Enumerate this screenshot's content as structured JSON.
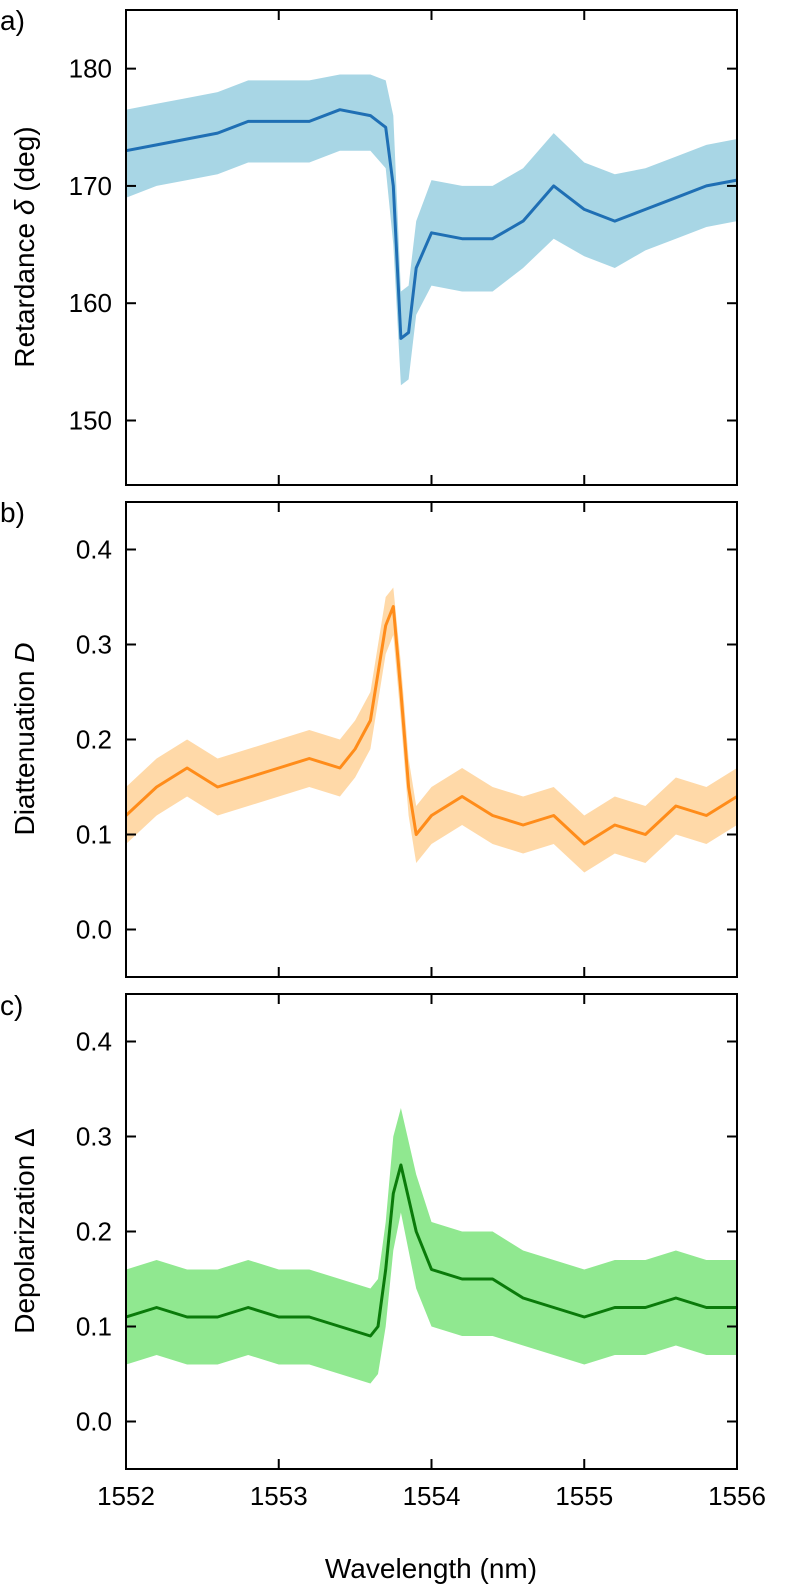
{
  "colors": {
    "a_line": "#1f6fb4",
    "a_band": "#a8d6e5",
    "b_line": "#ff8c1a",
    "b_band": "#ffd9a8",
    "c_line": "#0a7a0a",
    "c_band": "#90e890"
  },
  "chart_data": [
    {
      "type": "line",
      "panel_label": "a)",
      "ylabel_prefix": "Retardance ",
      "ylabel_symbol": "δ",
      "ylabel_suffix": " (deg)",
      "xlim": [
        1552,
        1556
      ],
      "ylim": [
        144.5,
        185
      ],
      "yticks": [
        "150",
        "160",
        "170",
        "180"
      ],
      "ytick_values": [
        150,
        160,
        170,
        180
      ],
      "x": [
        1552.0,
        1552.2,
        1552.4,
        1552.6,
        1552.8,
        1553.0,
        1553.2,
        1553.4,
        1553.6,
        1553.7,
        1553.75,
        1553.8,
        1553.85,
        1553.9,
        1554.0,
        1554.2,
        1554.4,
        1554.6,
        1554.8,
        1555.0,
        1555.2,
        1555.4,
        1555.6,
        1555.8,
        1556.0
      ],
      "series": [
        {
          "mean": [
            173.0,
            173.5,
            174.0,
            174.5,
            175.5,
            175.5,
            175.5,
            176.5,
            176.0,
            175.0,
            170.0,
            157.0,
            157.5,
            163.0,
            166.0,
            165.5,
            165.5,
            167.0,
            170.0,
            168.0,
            167.0,
            168.0,
            169.0,
            170.0,
            170.5
          ],
          "lower": [
            169.0,
            170.0,
            170.5,
            171.0,
            172.0,
            172.0,
            172.0,
            173.0,
            173.0,
            171.5,
            165.0,
            153.0,
            153.5,
            159.0,
            161.5,
            161.0,
            161.0,
            163.0,
            165.5,
            164.0,
            163.0,
            164.5,
            165.5,
            166.5,
            167.0
          ],
          "upper": [
            176.5,
            177.0,
            177.5,
            178.0,
            179.0,
            179.0,
            179.0,
            179.5,
            179.5,
            179.0,
            176.0,
            161.0,
            161.5,
            167.0,
            170.5,
            170.0,
            170.0,
            171.5,
            174.5,
            172.0,
            171.0,
            171.5,
            172.5,
            173.5,
            174.0
          ]
        }
      ]
    },
    {
      "type": "line",
      "panel_label": "b)",
      "ylabel_prefix": "Diattenuation ",
      "ylabel_symbol": "D",
      "ylabel_suffix": "",
      "xlim": [
        1552,
        1556
      ],
      "ylim": [
        -0.05,
        0.45
      ],
      "yticks": [
        "0.0",
        "0.1",
        "0.2",
        "0.3",
        "0.4"
      ],
      "ytick_values": [
        0.0,
        0.1,
        0.2,
        0.3,
        0.4
      ],
      "x": [
        1552.0,
        1552.2,
        1552.4,
        1552.6,
        1552.8,
        1553.0,
        1553.2,
        1553.4,
        1553.5,
        1553.6,
        1553.7,
        1553.75,
        1553.8,
        1553.85,
        1553.9,
        1554.0,
        1554.2,
        1554.4,
        1554.6,
        1554.8,
        1555.0,
        1555.2,
        1555.4,
        1555.6,
        1555.8,
        1556.0
      ],
      "series": [
        {
          "mean": [
            0.12,
            0.15,
            0.17,
            0.15,
            0.16,
            0.17,
            0.18,
            0.17,
            0.19,
            0.22,
            0.32,
            0.34,
            0.25,
            0.15,
            0.1,
            0.12,
            0.14,
            0.12,
            0.11,
            0.12,
            0.09,
            0.11,
            0.1,
            0.13,
            0.12,
            0.14
          ],
          "lower": [
            0.09,
            0.12,
            0.14,
            0.12,
            0.13,
            0.14,
            0.15,
            0.14,
            0.16,
            0.19,
            0.29,
            0.31,
            0.22,
            0.12,
            0.07,
            0.09,
            0.11,
            0.09,
            0.08,
            0.09,
            0.06,
            0.08,
            0.07,
            0.1,
            0.09,
            0.11
          ],
          "upper": [
            0.15,
            0.18,
            0.2,
            0.18,
            0.19,
            0.2,
            0.21,
            0.2,
            0.22,
            0.25,
            0.35,
            0.36,
            0.28,
            0.18,
            0.13,
            0.15,
            0.17,
            0.15,
            0.14,
            0.15,
            0.12,
            0.14,
            0.13,
            0.16,
            0.15,
            0.17
          ]
        }
      ]
    },
    {
      "type": "line",
      "panel_label": "c)",
      "ylabel_prefix": "Depolarization ",
      "ylabel_symbol": "Δ",
      "ylabel_suffix": "",
      "xlabel": "Wavelength (nm)",
      "xlim": [
        1552,
        1556
      ],
      "ylim": [
        -0.05,
        0.45
      ],
      "xticks": [
        "1552",
        "1553",
        "1554",
        "1555",
        "1556"
      ],
      "xtick_values": [
        1552,
        1553,
        1554,
        1555,
        1556
      ],
      "yticks": [
        "0.0",
        "0.1",
        "0.2",
        "0.3",
        "0.4"
      ],
      "ytick_values": [
        0.0,
        0.1,
        0.2,
        0.3,
        0.4
      ],
      "x": [
        1552.0,
        1552.2,
        1552.4,
        1552.6,
        1552.8,
        1553.0,
        1553.2,
        1553.4,
        1553.6,
        1553.65,
        1553.7,
        1553.75,
        1553.8,
        1553.9,
        1554.0,
        1554.2,
        1554.4,
        1554.6,
        1554.8,
        1555.0,
        1555.2,
        1555.4,
        1555.6,
        1555.8,
        1556.0
      ],
      "series": [
        {
          "mean": [
            0.11,
            0.12,
            0.11,
            0.11,
            0.12,
            0.11,
            0.11,
            0.1,
            0.09,
            0.1,
            0.16,
            0.24,
            0.27,
            0.2,
            0.16,
            0.15,
            0.15,
            0.13,
            0.12,
            0.11,
            0.12,
            0.12,
            0.13,
            0.12,
            0.12
          ],
          "lower": [
            0.06,
            0.07,
            0.06,
            0.06,
            0.07,
            0.06,
            0.06,
            0.05,
            0.04,
            0.05,
            0.1,
            0.18,
            0.22,
            0.14,
            0.1,
            0.09,
            0.09,
            0.08,
            0.07,
            0.06,
            0.07,
            0.07,
            0.08,
            0.07,
            0.07
          ],
          "upper": [
            0.16,
            0.17,
            0.16,
            0.16,
            0.17,
            0.16,
            0.16,
            0.15,
            0.14,
            0.15,
            0.21,
            0.3,
            0.33,
            0.26,
            0.21,
            0.2,
            0.2,
            0.18,
            0.17,
            0.16,
            0.17,
            0.17,
            0.18,
            0.17,
            0.17
          ]
        }
      ]
    }
  ]
}
